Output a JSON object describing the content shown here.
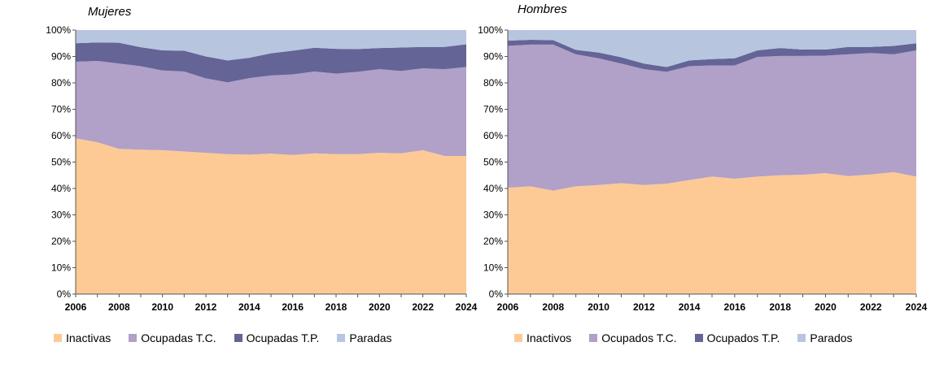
{
  "chart_data": [
    {
      "type": "area",
      "stacked": true,
      "title": "Mujeres",
      "x": [
        2006,
        2007,
        2008,
        2009,
        2010,
        2011,
        2012,
        2013,
        2014,
        2015,
        2016,
        2017,
        2018,
        2019,
        2020,
        2021,
        2022,
        2023,
        2024
      ],
      "x_ticks": [
        "2006",
        "2008",
        "2010",
        "2012",
        "2014",
        "2016",
        "2018",
        "2020",
        "2022",
        "2024"
      ],
      "y_ticks": [
        "0%",
        "10%",
        "20%",
        "30%",
        "40%",
        "50%",
        "60%",
        "70%",
        "80%",
        "90%",
        "100%"
      ],
      "ylim": [
        0,
        100
      ],
      "grid": false,
      "legend": "bottom",
      "series": [
        {
          "name": "Inactivas",
          "color": "#FDCA96",
          "values": [
            59,
            57.5,
            55,
            54.7,
            54.5,
            54,
            53.5,
            53,
            52.8,
            53.2,
            52.7,
            53.3,
            53,
            53,
            53.5,
            53.3,
            54.5,
            52.3,
            52.3
          ]
        },
        {
          "name": "Ocupadas T.C.",
          "color": "#B1A0C7",
          "values": [
            29,
            30.8,
            32.3,
            31.6,
            30.2,
            30.3,
            28.2,
            27.2,
            29,
            29.6,
            30.5,
            31,
            30.5,
            31.2,
            31.7,
            31.2,
            31,
            32.9,
            33.7
          ]
        },
        {
          "name": "Ocupadas T.P.",
          "color": "#646497",
          "values": [
            7,
            7,
            7.9,
            7.2,
            7.6,
            7.9,
            8.3,
            8.3,
            7.7,
            8.4,
            9,
            9,
            9.4,
            8.6,
            8,
            8.9,
            8.1,
            8.4,
            8.6
          ]
        },
        {
          "name": "Paradas",
          "color": "#B7C5DF",
          "values": [
            5,
            4.7,
            4.8,
            6.5,
            7.7,
            7.8,
            10,
            11.5,
            10.5,
            8.8,
            7.8,
            6.7,
            7.1,
            7.2,
            6.8,
            6.6,
            6.4,
            6.4,
            5.4
          ]
        }
      ]
    },
    {
      "type": "area",
      "stacked": true,
      "title": "Hombres",
      "x": [
        2006,
        2007,
        2008,
        2009,
        2010,
        2011,
        2012,
        2013,
        2014,
        2015,
        2016,
        2017,
        2018,
        2019,
        2020,
        2021,
        2022,
        2023,
        2024
      ],
      "x_ticks": [
        "2006",
        "2008",
        "2010",
        "2012",
        "2014",
        "2016",
        "2018",
        "2020",
        "2022",
        "2024"
      ],
      "y_ticks": [
        "0%",
        "10%",
        "20%",
        "30%",
        "40%",
        "50%",
        "60%",
        "70%",
        "80%",
        "90%",
        "100%"
      ],
      "ylim": [
        0,
        100
      ],
      "grid": false,
      "legend": "bottom",
      "series": [
        {
          "name": "Inactivos",
          "color": "#FDCA96",
          "values": [
            40.3,
            40.8,
            39.2,
            40.8,
            41.3,
            42,
            41.3,
            41.8,
            43.2,
            44.5,
            43.7,
            44.5,
            45,
            45.2,
            45.8,
            44.7,
            45.3,
            46.2,
            44.5
          ]
        },
        {
          "name": "Ocupados T.C.",
          "color": "#B1A0C7",
          "values": [
            53.7,
            53.7,
            55.3,
            50,
            48,
            45.3,
            43.9,
            42.4,
            43.1,
            42.1,
            42.9,
            45.3,
            45.2,
            45,
            44.5,
            46.1,
            46,
            44.6,
            47.8
          ]
        },
        {
          "name": "Ocupados T.P.",
          "color": "#646497",
          "values": [
            2,
            1.8,
            1.7,
            1.7,
            2.2,
            2.4,
            2.1,
            1.8,
            2.2,
            2.4,
            2.7,
            2.5,
            3,
            2.4,
            2.3,
            2.8,
            2.3,
            3.2,
            2.7
          ]
        },
        {
          "name": "Parados",
          "color": "#B7C5DF",
          "values": [
            4,
            3.7,
            3.8,
            7.5,
            8.5,
            10.3,
            12.7,
            14,
            11.5,
            11,
            10.7,
            7.7,
            6.8,
            7.4,
            7.4,
            6.4,
            6.4,
            6,
            5
          ]
        }
      ]
    }
  ]
}
